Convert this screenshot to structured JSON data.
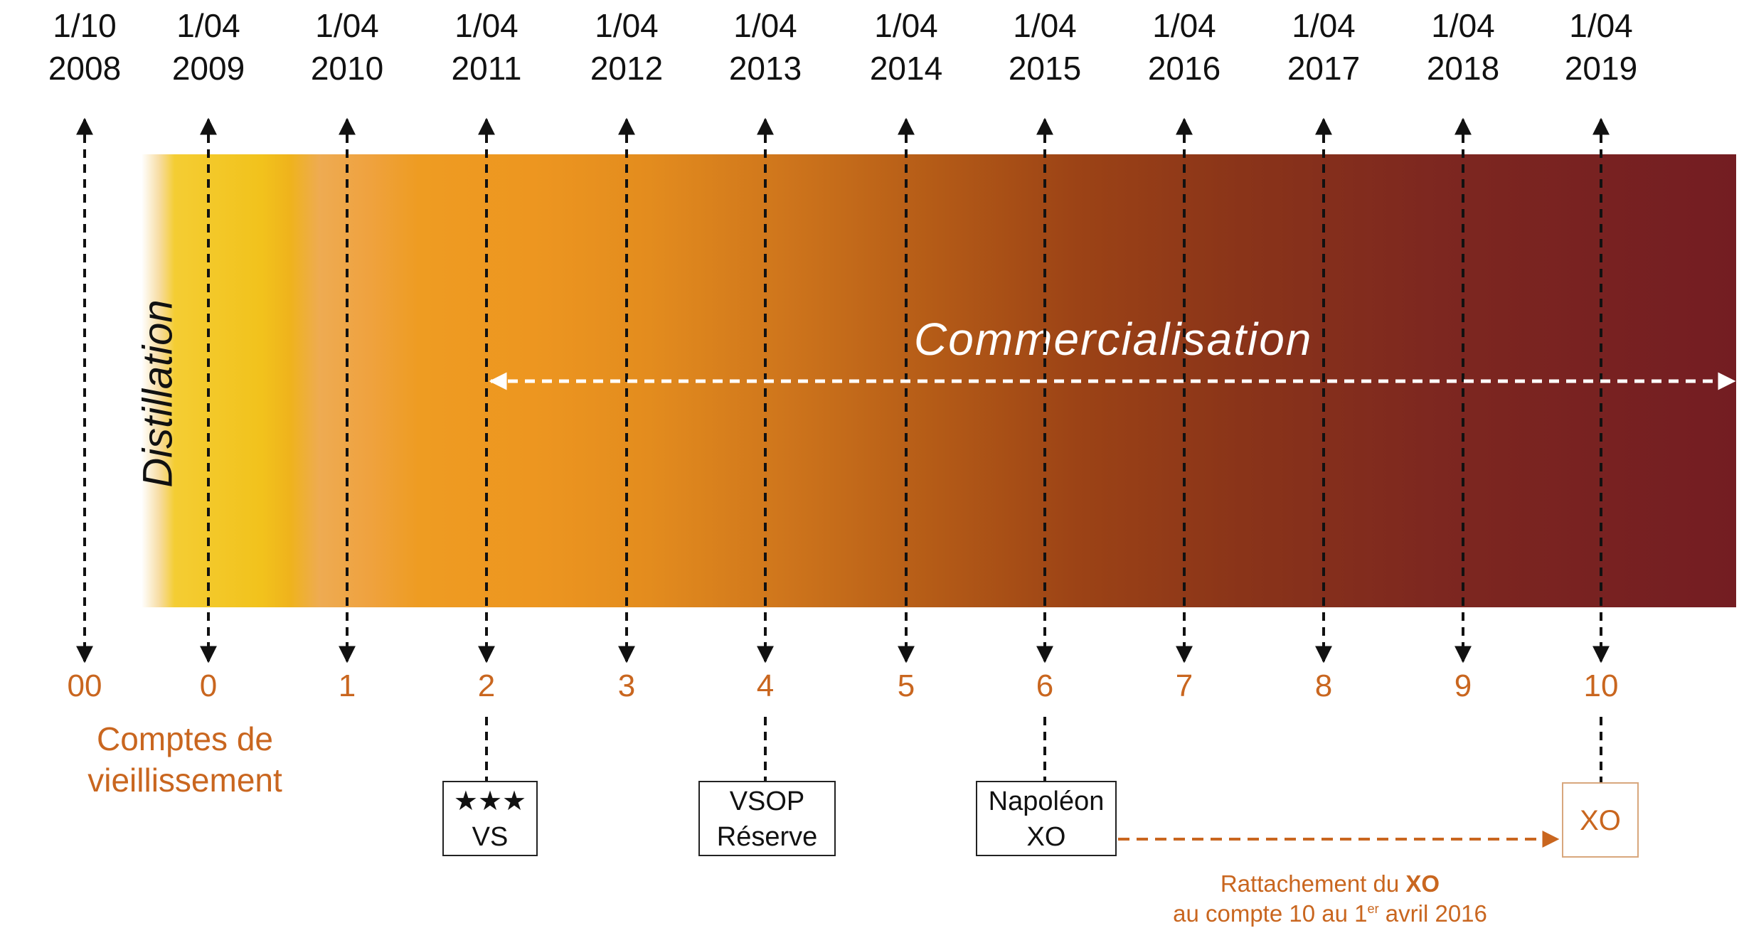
{
  "colors": {
    "band_start": "#f4cd33",
    "band_end": "#741d22",
    "accent": "#c9661f",
    "line": "#111111",
    "arrow_white": "#ffffff"
  },
  "dates": [
    {
      "line1": "1/10",
      "line2": "2008"
    },
    {
      "line1": "1/04",
      "line2": "2009"
    },
    {
      "line1": "1/04",
      "line2": "2010"
    },
    {
      "line1": "1/04",
      "line2": "2011"
    },
    {
      "line1": "1/04",
      "line2": "2012"
    },
    {
      "line1": "1/04",
      "line2": "2013"
    },
    {
      "line1": "1/04",
      "line2": "2014"
    },
    {
      "line1": "1/04",
      "line2": "2015"
    },
    {
      "line1": "1/04",
      "line2": "2016"
    },
    {
      "line1": "1/04",
      "line2": "2017"
    },
    {
      "line1": "1/04",
      "line2": "2018"
    },
    {
      "line1": "1/04",
      "line2": "2019"
    }
  ],
  "counts": [
    "00",
    "0",
    "1",
    "2",
    "3",
    "4",
    "5",
    "6",
    "7",
    "8",
    "9",
    "10"
  ],
  "distillation_label": "Distillation",
  "commercialisation_label": "Commercialisation",
  "comptes_label": {
    "line1": "Comptes de",
    "line2": "vieillissement"
  },
  "categories": [
    {
      "line1": "★★★",
      "line2": "VS"
    },
    {
      "line1": "VSOP",
      "line2": "Réserve"
    },
    {
      "line1": "Napoléon",
      "line2": "XO"
    },
    {
      "line1": "XO"
    }
  ],
  "note": {
    "line1_prefix": "Rattachement du ",
    "line1_bold": "XO",
    "line2_prefix": "au compte 10 au 1",
    "line2_sup": "er",
    "line2_suffix": " avril 2016"
  }
}
